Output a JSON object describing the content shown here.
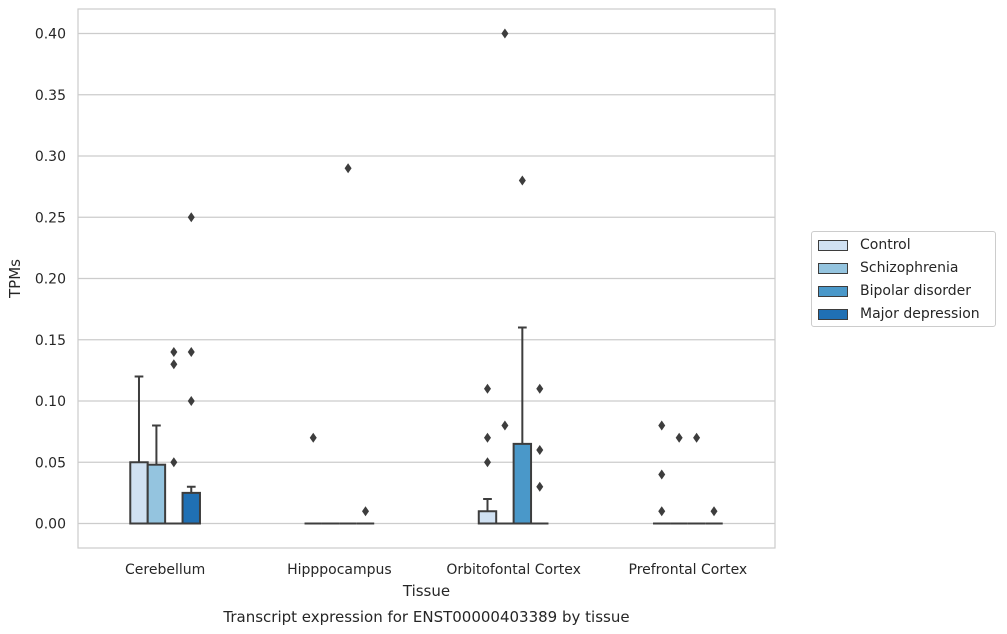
{
  "chart_data": {
    "type": "box",
    "title": "",
    "caption": "Transcript expression for ENST00000403389 by tissue",
    "xlabel": "Tissue",
    "ylabel": "TPMs",
    "ylim": [
      -0.02,
      0.42
    ],
    "yticks": [
      "0.00",
      "0.05",
      "0.10",
      "0.15",
      "0.20",
      "0.25",
      "0.30",
      "0.35",
      "0.40"
    ],
    "grid": true,
    "legend_position": "right",
    "categories": [
      "Cerebellum",
      "Hipppocampus",
      "Orbitofontal Cortex",
      "Prefrontal Cortex"
    ],
    "series": [
      {
        "name": "Control",
        "color": "#d0e1f2",
        "boxes": [
          {
            "q1": 0.0,
            "median": 0.0,
            "q3": 0.05,
            "whisker_low": 0.0,
            "whisker_high": 0.12,
            "outliers": []
          },
          {
            "q1": 0.0,
            "median": 0.0,
            "q3": 0.0,
            "whisker_low": 0.0,
            "whisker_high": 0.0,
            "outliers": [
              0.07
            ]
          },
          {
            "q1": 0.0,
            "median": 0.0,
            "q3": 0.01,
            "whisker_low": 0.0,
            "whisker_high": 0.02,
            "outliers": [
              0.05,
              0.07,
              0.11
            ]
          },
          {
            "q1": 0.0,
            "median": 0.0,
            "q3": 0.0,
            "whisker_low": 0.0,
            "whisker_high": 0.0,
            "outliers": [
              0.01,
              0.04,
              0.08
            ]
          }
        ]
      },
      {
        "name": "Schizophrenia",
        "color": "#94c4df",
        "boxes": [
          {
            "q1": 0.0,
            "median": 0.0,
            "q3": 0.048,
            "whisker_low": 0.0,
            "whisker_high": 0.08,
            "outliers": []
          },
          {
            "q1": 0.0,
            "median": 0.0,
            "q3": 0.0,
            "whisker_low": 0.0,
            "whisker_high": 0.0,
            "outliers": []
          },
          {
            "q1": 0.0,
            "median": 0.0,
            "q3": 0.0,
            "whisker_low": 0.0,
            "whisker_high": 0.0,
            "outliers": [
              0.08,
              0.4
            ]
          },
          {
            "q1": 0.0,
            "median": 0.0,
            "q3": 0.0,
            "whisker_low": 0.0,
            "whisker_high": 0.0,
            "outliers": [
              0.07
            ]
          }
        ]
      },
      {
        "name": "Bipolar disorder",
        "color": "#4a98c9",
        "boxes": [
          {
            "q1": 0.0,
            "median": 0.0,
            "q3": 0.0,
            "whisker_low": 0.0,
            "whisker_high": 0.0,
            "outliers": [
              0.05,
              0.13,
              0.14
            ]
          },
          {
            "q1": 0.0,
            "median": 0.0,
            "q3": 0.0,
            "whisker_low": 0.0,
            "whisker_high": 0.0,
            "outliers": [
              0.29
            ]
          },
          {
            "q1": 0.0,
            "median": 0.0,
            "q3": 0.065,
            "whisker_low": 0.0,
            "whisker_high": 0.16,
            "outliers": [
              0.28
            ]
          },
          {
            "q1": 0.0,
            "median": 0.0,
            "q3": 0.0,
            "whisker_low": 0.0,
            "whisker_high": 0.0,
            "outliers": [
              0.07
            ]
          }
        ]
      },
      {
        "name": "Major depression",
        "color": "#2070b4",
        "boxes": [
          {
            "q1": 0.0,
            "median": 0.0,
            "q3": 0.025,
            "whisker_low": 0.0,
            "whisker_high": 0.03,
            "outliers": [
              0.1,
              0.14,
              0.25
            ]
          },
          {
            "q1": 0.0,
            "median": 0.0,
            "q3": 0.0,
            "whisker_low": 0.0,
            "whisker_high": 0.0,
            "outliers": [
              0.01
            ]
          },
          {
            "q1": 0.0,
            "median": 0.0,
            "q3": 0.0,
            "whisker_low": 0.0,
            "whisker_high": 0.0,
            "outliers": [
              0.03,
              0.06,
              0.11
            ]
          },
          {
            "q1": 0.0,
            "median": 0.0,
            "q3": 0.0,
            "whisker_low": 0.0,
            "whisker_high": 0.0,
            "outliers": [
              0.01
            ]
          }
        ]
      }
    ]
  }
}
